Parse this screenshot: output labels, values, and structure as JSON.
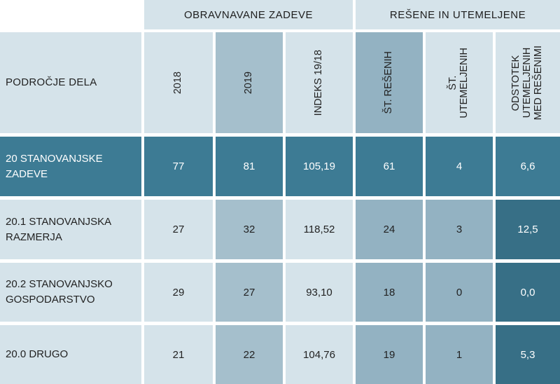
{
  "header": {
    "group_obravnavane": "OBRAVNAVANE ZADEVE",
    "group_resene": "REŠENE IN UTEMELJENE",
    "col_podrocje": "PODROČJE DELA",
    "col_2018": "2018",
    "col_2019": "2019",
    "col_indeks": "INDEKS 19/18",
    "col_st_resenih": "ŠT. REŠENIH",
    "col_st_utemeljenih": "ŠT.\nUTEMELJENIH",
    "col_odstotek": "ODSTOTEK\nUTEMELJENIH\nMED REŠENIMI"
  },
  "rows": [
    {
      "label": "20 STANOVANJSKE ZADEVE",
      "v2018": "77",
      "v2019": "81",
      "indeks": "105,19",
      "resenih": "61",
      "utemeljenih": "4",
      "odstotek": "6,6"
    },
    {
      "label": "20.1 STANOVANJSKA RAZMERJA",
      "v2018": "27",
      "v2019": "32",
      "indeks": "118,52",
      "resenih": "24",
      "utemeljenih": "3",
      "odstotek": "12,5"
    },
    {
      "label": "20.2 STANOVANJSKO GOSPODARSTVO",
      "v2018": "29",
      "v2019": "27",
      "indeks": "93,10",
      "resenih": "18",
      "utemeljenih": "0",
      "odstotek": "0,0"
    },
    {
      "label": "20.0 DRUGO",
      "v2018": "21",
      "v2019": "22",
      "indeks": "104,76",
      "resenih": "19",
      "utemeljenih": "1",
      "odstotek": "5,3"
    }
  ]
}
